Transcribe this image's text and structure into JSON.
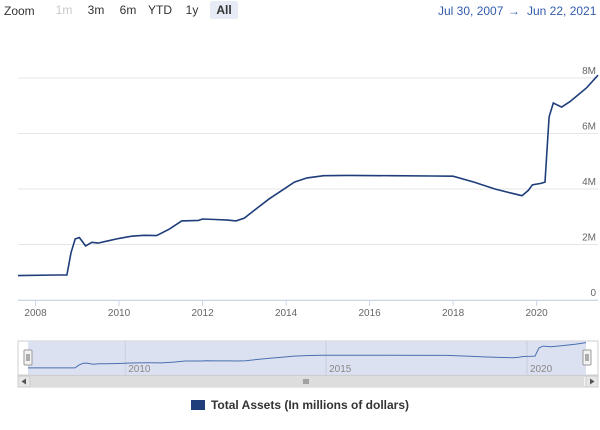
{
  "zoom": {
    "label": "Zoom",
    "buttons": [
      {
        "label": "1m",
        "state": "disabled"
      },
      {
        "label": "3m",
        "state": "normal"
      },
      {
        "label": "6m",
        "state": "normal"
      },
      {
        "label": "YTD",
        "state": "normal"
      },
      {
        "label": "1y",
        "state": "normal"
      },
      {
        "label": "All",
        "state": "active"
      }
    ]
  },
  "range": {
    "from": "Jul 30, 2007",
    "arrow": "→",
    "to": "Jun 22, 2021"
  },
  "colors": {
    "series": "#1e3d7a",
    "navigator_fill": "#d6dcef",
    "navigator_line": "#4a6fb0",
    "range_text": "#335cad"
  },
  "chart_data": {
    "type": "line",
    "title": "",
    "xlabel": "",
    "ylabel": "",
    "x_range": [
      2007.58,
      2021.47
    ],
    "ylim": [
      0,
      8000000
    ],
    "y_ticks": [
      0,
      2000000,
      4000000,
      6000000,
      8000000
    ],
    "y_tick_labels": [
      "0",
      "2M",
      "4M",
      "6M",
      "8M"
    ],
    "x_ticks": [
      2008,
      2010,
      2012,
      2014,
      2016,
      2018,
      2020
    ],
    "x_tick_labels": [
      "2008",
      "2010",
      "2012",
      "2014",
      "2016",
      "2018",
      "2020"
    ],
    "grid": true,
    "legend_position": "bottom-center",
    "series": [
      {
        "name": "Total Assets (In millions of dollars)",
        "x": [
          2007.58,
          2008.5,
          2008.75,
          2008.85,
          2008.95,
          2009.05,
          2009.2,
          2009.35,
          2009.5,
          2009.7,
          2010.0,
          2010.3,
          2010.6,
          2010.9,
          2011.2,
          2011.5,
          2011.9,
          2012.0,
          2012.3,
          2012.6,
          2012.8,
          2013.0,
          2013.3,
          2013.6,
          2013.9,
          2014.2,
          2014.5,
          2014.9,
          2015.5,
          2016.5,
          2017.5,
          2018.0,
          2018.5,
          2019.0,
          2019.4,
          2019.65,
          2019.8,
          2019.9,
          2020.1,
          2020.2,
          2020.3,
          2020.4,
          2020.6,
          2020.8,
          2021.0,
          2021.2,
          2021.47
        ],
        "y": [
          880000,
          900000,
          900000,
          1700000,
          2200000,
          2250000,
          1950000,
          2080000,
          2050000,
          2120000,
          2220000,
          2300000,
          2330000,
          2320000,
          2550000,
          2850000,
          2870000,
          2920000,
          2900000,
          2880000,
          2850000,
          2950000,
          3300000,
          3650000,
          3950000,
          4250000,
          4400000,
          4480000,
          4490000,
          4480000,
          4470000,
          4460000,
          4250000,
          4000000,
          3850000,
          3760000,
          3950000,
          4150000,
          4200000,
          4250000,
          6600000,
          7100000,
          6950000,
          7150000,
          7400000,
          7650000,
          8100000
        ]
      }
    ],
    "navigator": {
      "tick_labels": [
        "2010",
        "2015",
        "2020"
      ],
      "ticks": [
        2010,
        2015,
        2020
      ]
    }
  },
  "legend": {
    "label": "Total Assets (In millions of dollars)"
  }
}
